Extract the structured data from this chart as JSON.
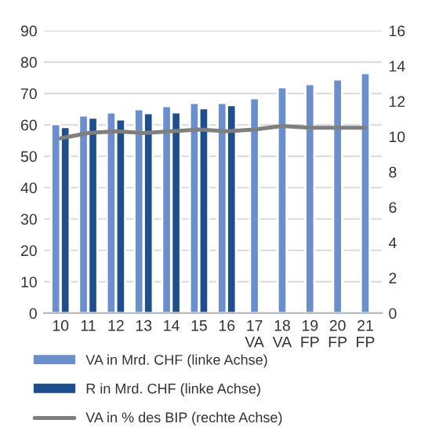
{
  "chart_data": {
    "type": "bar",
    "categories": [
      "10",
      "11",
      "12",
      "13",
      "14",
      "15",
      "16",
      "17\nVA",
      "18\nVA",
      "19\nFP",
      "20\nFP",
      "21\nFP"
    ],
    "series": [
      {
        "name": "VA in Mrd. CHF (linke Achse)",
        "color": "#6a8fcc",
        "values": [
          60.2,
          63,
          64,
          65,
          66,
          67,
          67,
          68.5,
          72,
          73,
          74.5,
          76.5
        ]
      },
      {
        "name": "R in Mrd. CHF (linke Achse)",
        "color": "#1f4e8c",
        "values": [
          59.3,
          62.3,
          61.7,
          63.7,
          64,
          65.3,
          66.3,
          null,
          null,
          null,
          null,
          null
        ]
      },
      {
        "name": "VA in % des BIP (rechte Achse)",
        "type": "line",
        "axis": "y2",
        "color": "#7f7f7f",
        "values": [
          9.9,
          10.2,
          10.3,
          10.2,
          10.3,
          10.4,
          10.3,
          10.4,
          10.6,
          10.5,
          10.5,
          10.5
        ]
      }
    ],
    "ylim": [
      0,
      90
    ],
    "yticks": [
      0,
      10,
      20,
      30,
      40,
      50,
      60,
      70,
      80,
      90
    ],
    "y2lim": [
      0,
      16
    ],
    "y2ticks": [
      0,
      2,
      4,
      6,
      8,
      10,
      12,
      14,
      16
    ],
    "grid": "y",
    "legend": "bottom",
    "marker": "none",
    "line_style": "solid"
  }
}
